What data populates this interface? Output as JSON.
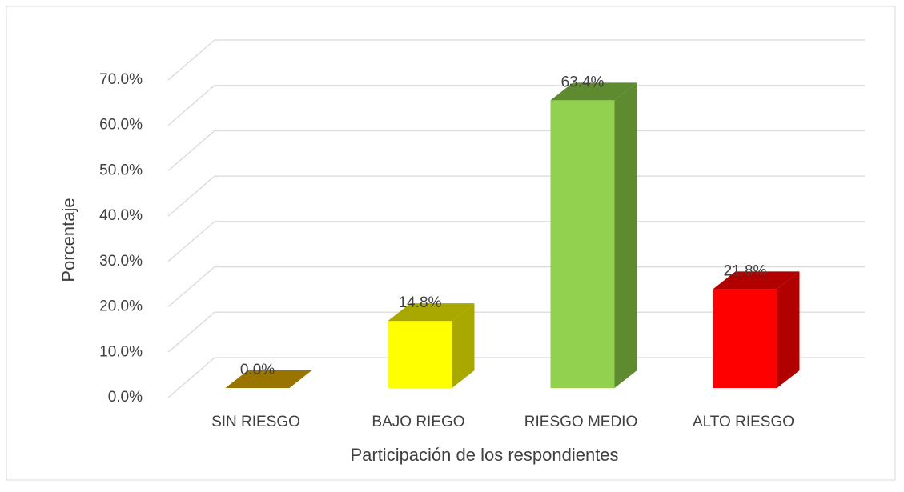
{
  "chart_data": {
    "type": "bar3d",
    "x_label": "Participación de los respondientes",
    "y_label": "Porcentaje",
    "categories": [
      "SIN RIESGO",
      "BAJO RIEGO",
      "RIESGO MEDIO",
      "ALTO RIESGO"
    ],
    "values": [
      0,
      14.8,
      63.4,
      21.8
    ],
    "value_labels": [
      "0.0%",
      "14.8%",
      "63.4%",
      "21.8%"
    ],
    "colors": [
      "#c89800",
      "#ffff00",
      "#92d050",
      "#ff0000"
    ],
    "side_colors": [
      "#9a7400",
      "#a8a800",
      "#5e8a30",
      "#b00000"
    ],
    "ylim": [
      0,
      70
    ],
    "yticks": [
      {
        "value": 0,
        "label": "0.0%"
      },
      {
        "value": 10,
        "label": "10.0%"
      },
      {
        "value": 20,
        "label": "20.0%"
      },
      {
        "value": 30,
        "label": "30.0%"
      },
      {
        "value": 40,
        "label": "40.0%"
      },
      {
        "value": 50,
        "label": "50.0%"
      },
      {
        "value": 60,
        "label": "60.0%"
      },
      {
        "value": 70,
        "label": "70.0%"
      }
    ],
    "grid": true
  }
}
